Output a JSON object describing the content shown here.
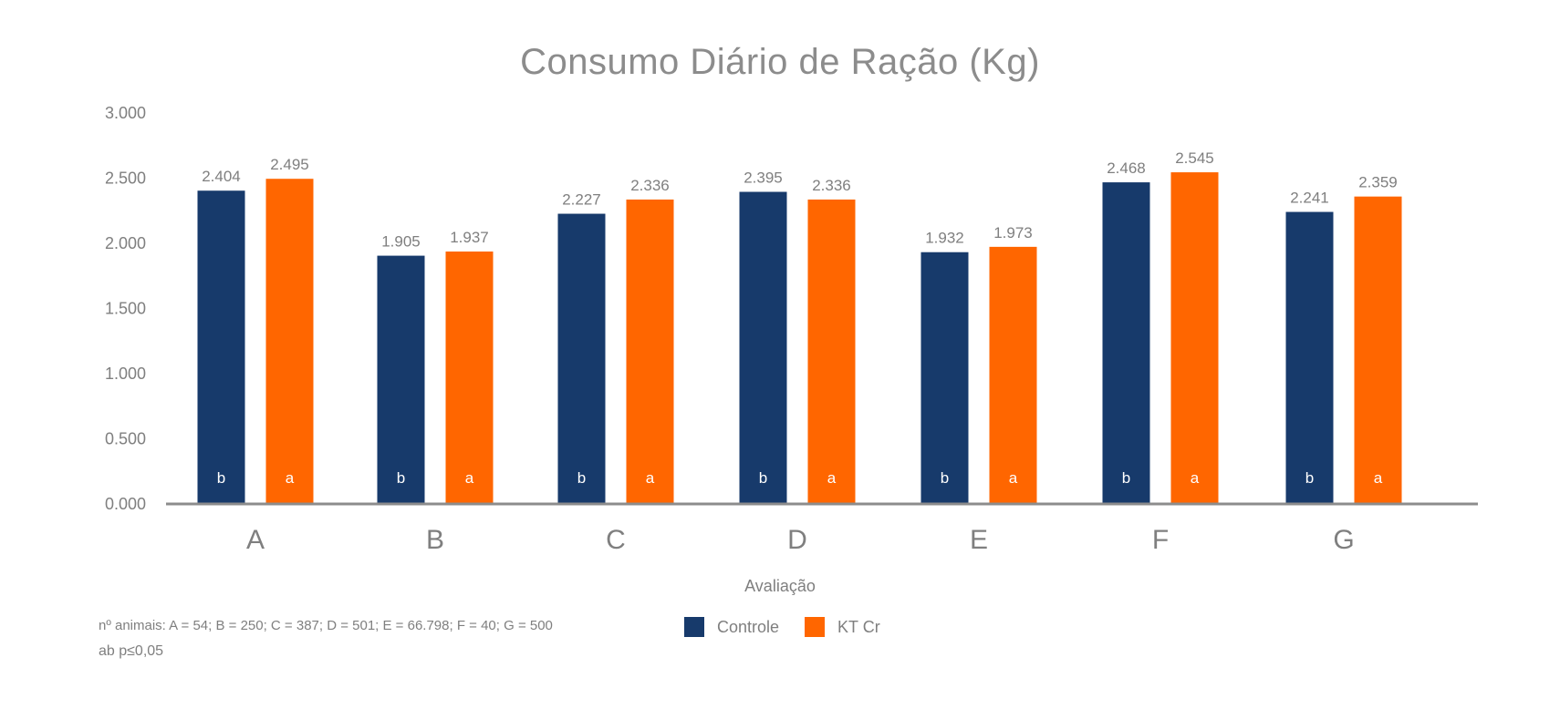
{
  "chart_data": {
    "type": "bar",
    "title": "Consumo Diário de Ração (Kg)",
    "xlabel": "Avaliação",
    "ylabel": "",
    "categories": [
      "A",
      "B",
      "C",
      "D",
      "E",
      "F",
      "G"
    ],
    "ylim": [
      0,
      3
    ],
    "yticks": [
      0,
      0.5,
      1,
      1.5,
      2,
      2.5,
      3
    ],
    "ytick_labels": [
      "0.000",
      "0.500",
      "1.000",
      "1.500",
      "2.000",
      "2.500",
      "3.000"
    ],
    "series": [
      {
        "name": "Controle",
        "color": "#173A6B",
        "values": [
          2.404,
          1.905,
          2.227,
          2.395,
          1.932,
          2.468,
          2.241
        ],
        "value_labels": [
          "2.404",
          "1.905",
          "2.227",
          "2.395",
          "1.932",
          "2.468",
          "2.241"
        ],
        "letters": [
          "b",
          "b",
          "b",
          "b",
          "b",
          "b",
          "b"
        ]
      },
      {
        "name": "KT Cr",
        "color": "#FF6600",
        "values": [
          2.495,
          1.937,
          2.336,
          2.336,
          1.973,
          2.545,
          2.359
        ],
        "value_labels": [
          "2.495",
          "1.937",
          "2.336",
          "2.336",
          "1.973",
          "2.545",
          "2.359"
        ],
        "letters": [
          "a",
          "a",
          "a",
          "a",
          "a",
          "a",
          "a"
        ]
      }
    ],
    "grid": false,
    "legend_position": "bottom-center"
  },
  "notes": {
    "animals": "nº animais: A = 54; B = 250; C = 387; D = 501; E = 66.798; F = 40; G = 500",
    "significance": "ab p≤0,05"
  },
  "colors": {
    "axis": "#8c8c8c",
    "text": "#7f7f7f",
    "letter": "#ffffff"
  }
}
